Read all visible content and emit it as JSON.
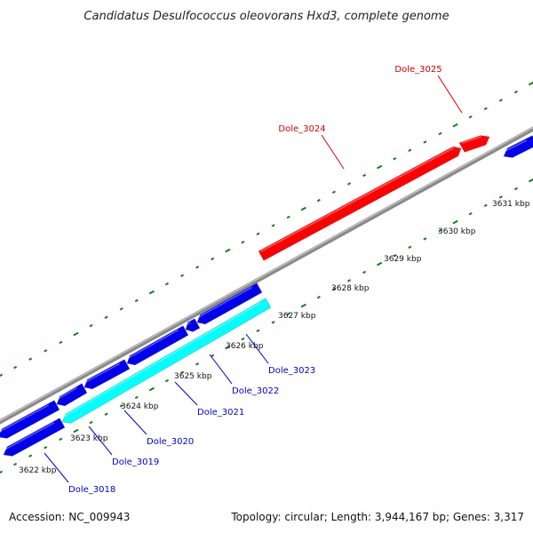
{
  "title": "Candidatus Desulfococcus oleovorans Hxd3, complete genome",
  "footer": {
    "accession": "Accession: NC_009943",
    "summary": "Topology: circular; Length: 3,944,167 bp; Genes: 3,317"
  },
  "colors": {
    "backbone": "#8a8a8a",
    "tick": "#1a7a1a",
    "forward_gene": "#ff0000",
    "reverse_gene": "#0000ee",
    "highlight_gene": "#00ffff",
    "forward_label": "#cc0000",
    "reverse_label": "#0000cc"
  },
  "scale_labels": [
    "3622 kbp",
    "3623 kbp",
    "3624 kbp",
    "3625 kbp",
    "3626 kbp",
    "3627 kbp",
    "3628 kbp",
    "3629 kbp",
    "3630 kbp",
    "3631 kbp"
  ],
  "genes": [
    {
      "name": "Dole_3018",
      "strand": "reverse"
    },
    {
      "name": "Dole_3019",
      "strand": "reverse"
    },
    {
      "name": "Dole_3020",
      "strand": "reverse"
    },
    {
      "name": "Dole_3021",
      "strand": "reverse"
    },
    {
      "name": "Dole_3022",
      "strand": "reverse"
    },
    {
      "name": "Dole_3023",
      "strand": "reverse"
    },
    {
      "name": "Dole_3024",
      "strand": "forward"
    },
    {
      "name": "Dole_3025",
      "strand": "forward"
    }
  ]
}
